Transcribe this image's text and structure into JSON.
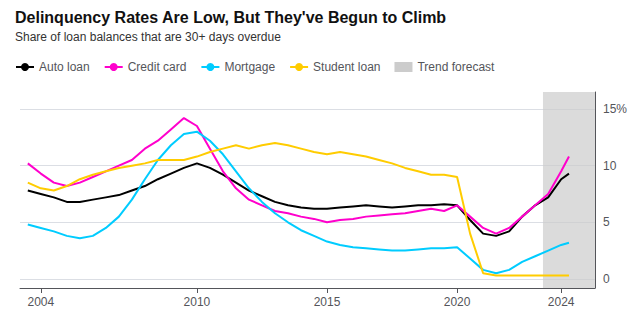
{
  "chart_data": {
    "type": "line",
    "title": "Delinquency Rates Are Low, But They've Begun to Climb",
    "subtitle": "Share of loan balances that are 30+ days overdue",
    "x": [
      2003.5,
      2004.0,
      2004.5,
      2005.0,
      2005.5,
      2006.0,
      2006.5,
      2007.0,
      2007.5,
      2008.0,
      2008.5,
      2009.0,
      2009.5,
      2010.0,
      2010.5,
      2011.0,
      2011.5,
      2012.0,
      2012.5,
      2013.0,
      2013.5,
      2014.0,
      2014.5,
      2015.0,
      2015.5,
      2016.0,
      2016.5,
      2017.0,
      2017.5,
      2018.0,
      2018.5,
      2019.0,
      2019.5,
      2020.0,
      2020.5,
      2021.0,
      2021.5,
      2022.0,
      2022.5,
      2023.0,
      2023.5,
      2024.0,
      2024.3
    ],
    "series": [
      {
        "name": "Auto loan",
        "color": "#000000",
        "values": [
          7.8,
          7.5,
          7.2,
          6.8,
          6.8,
          7.0,
          7.2,
          7.4,
          7.8,
          8.2,
          8.8,
          9.3,
          9.8,
          10.2,
          9.8,
          9.2,
          8.5,
          7.8,
          7.3,
          6.8,
          6.5,
          6.3,
          6.2,
          6.2,
          6.3,
          6.4,
          6.5,
          6.4,
          6.3,
          6.4,
          6.5,
          6.5,
          6.6,
          6.5,
          5.2,
          4.0,
          3.8,
          4.2,
          5.5,
          6.5,
          7.2,
          8.8,
          9.3
        ]
      },
      {
        "name": "Credit card",
        "color": "#ff00cc",
        "values": [
          10.2,
          9.3,
          8.5,
          8.2,
          8.5,
          9.0,
          9.5,
          10.0,
          10.5,
          11.5,
          12.2,
          13.2,
          14.2,
          13.5,
          11.5,
          9.5,
          8.0,
          7.0,
          6.5,
          6.0,
          5.8,
          5.5,
          5.3,
          5.0,
          5.2,
          5.3,
          5.5,
          5.6,
          5.7,
          5.8,
          6.0,
          6.2,
          6.0,
          6.5,
          5.5,
          4.5,
          4.0,
          4.5,
          5.5,
          6.5,
          7.5,
          9.5,
          10.8
        ]
      },
      {
        "name": "Mortgage",
        "color": "#00ccff",
        "values": [
          4.8,
          4.5,
          4.2,
          3.8,
          3.6,
          3.8,
          4.5,
          5.5,
          7.0,
          8.8,
          10.5,
          11.8,
          12.8,
          13.0,
          12.2,
          11.0,
          9.5,
          8.0,
          6.8,
          5.8,
          5.0,
          4.3,
          3.8,
          3.3,
          3.0,
          2.8,
          2.7,
          2.6,
          2.5,
          2.5,
          2.6,
          2.7,
          2.7,
          2.8,
          1.8,
          0.8,
          0.5,
          0.8,
          1.5,
          2.0,
          2.5,
          3.0,
          3.2
        ]
      },
      {
        "name": "Student loan",
        "color": "#ffcc00",
        "values": [
          8.5,
          8.0,
          7.8,
          8.2,
          8.8,
          9.2,
          9.5,
          9.8,
          10.0,
          10.2,
          10.5,
          10.5,
          10.5,
          10.8,
          11.2,
          11.5,
          11.8,
          11.5,
          11.8,
          12.0,
          11.8,
          11.5,
          11.2,
          11.0,
          11.2,
          11.0,
          10.8,
          10.5,
          10.2,
          9.8,
          9.5,
          9.2,
          9.2,
          9.0,
          4.0,
          0.5,
          0.3,
          0.3,
          0.3,
          0.3,
          0.3,
          0.3,
          0.3
        ]
      }
    ],
    "trend_forecast": {
      "name": "Trend forecast",
      "start": 2023.3,
      "end": 2025.3,
      "color": "#cccccc"
    },
    "xlim": [
      2003.2,
      2025.3
    ],
    "xticks": [
      2004,
      2010,
      2015,
      2020,
      2024
    ],
    "ylim": [
      -0.8,
      16.5
    ],
    "yticks": [
      0,
      5,
      10,
      {
        "value": 15,
        "label": "15%"
      }
    ],
    "grid": true,
    "legend": "upper left"
  }
}
